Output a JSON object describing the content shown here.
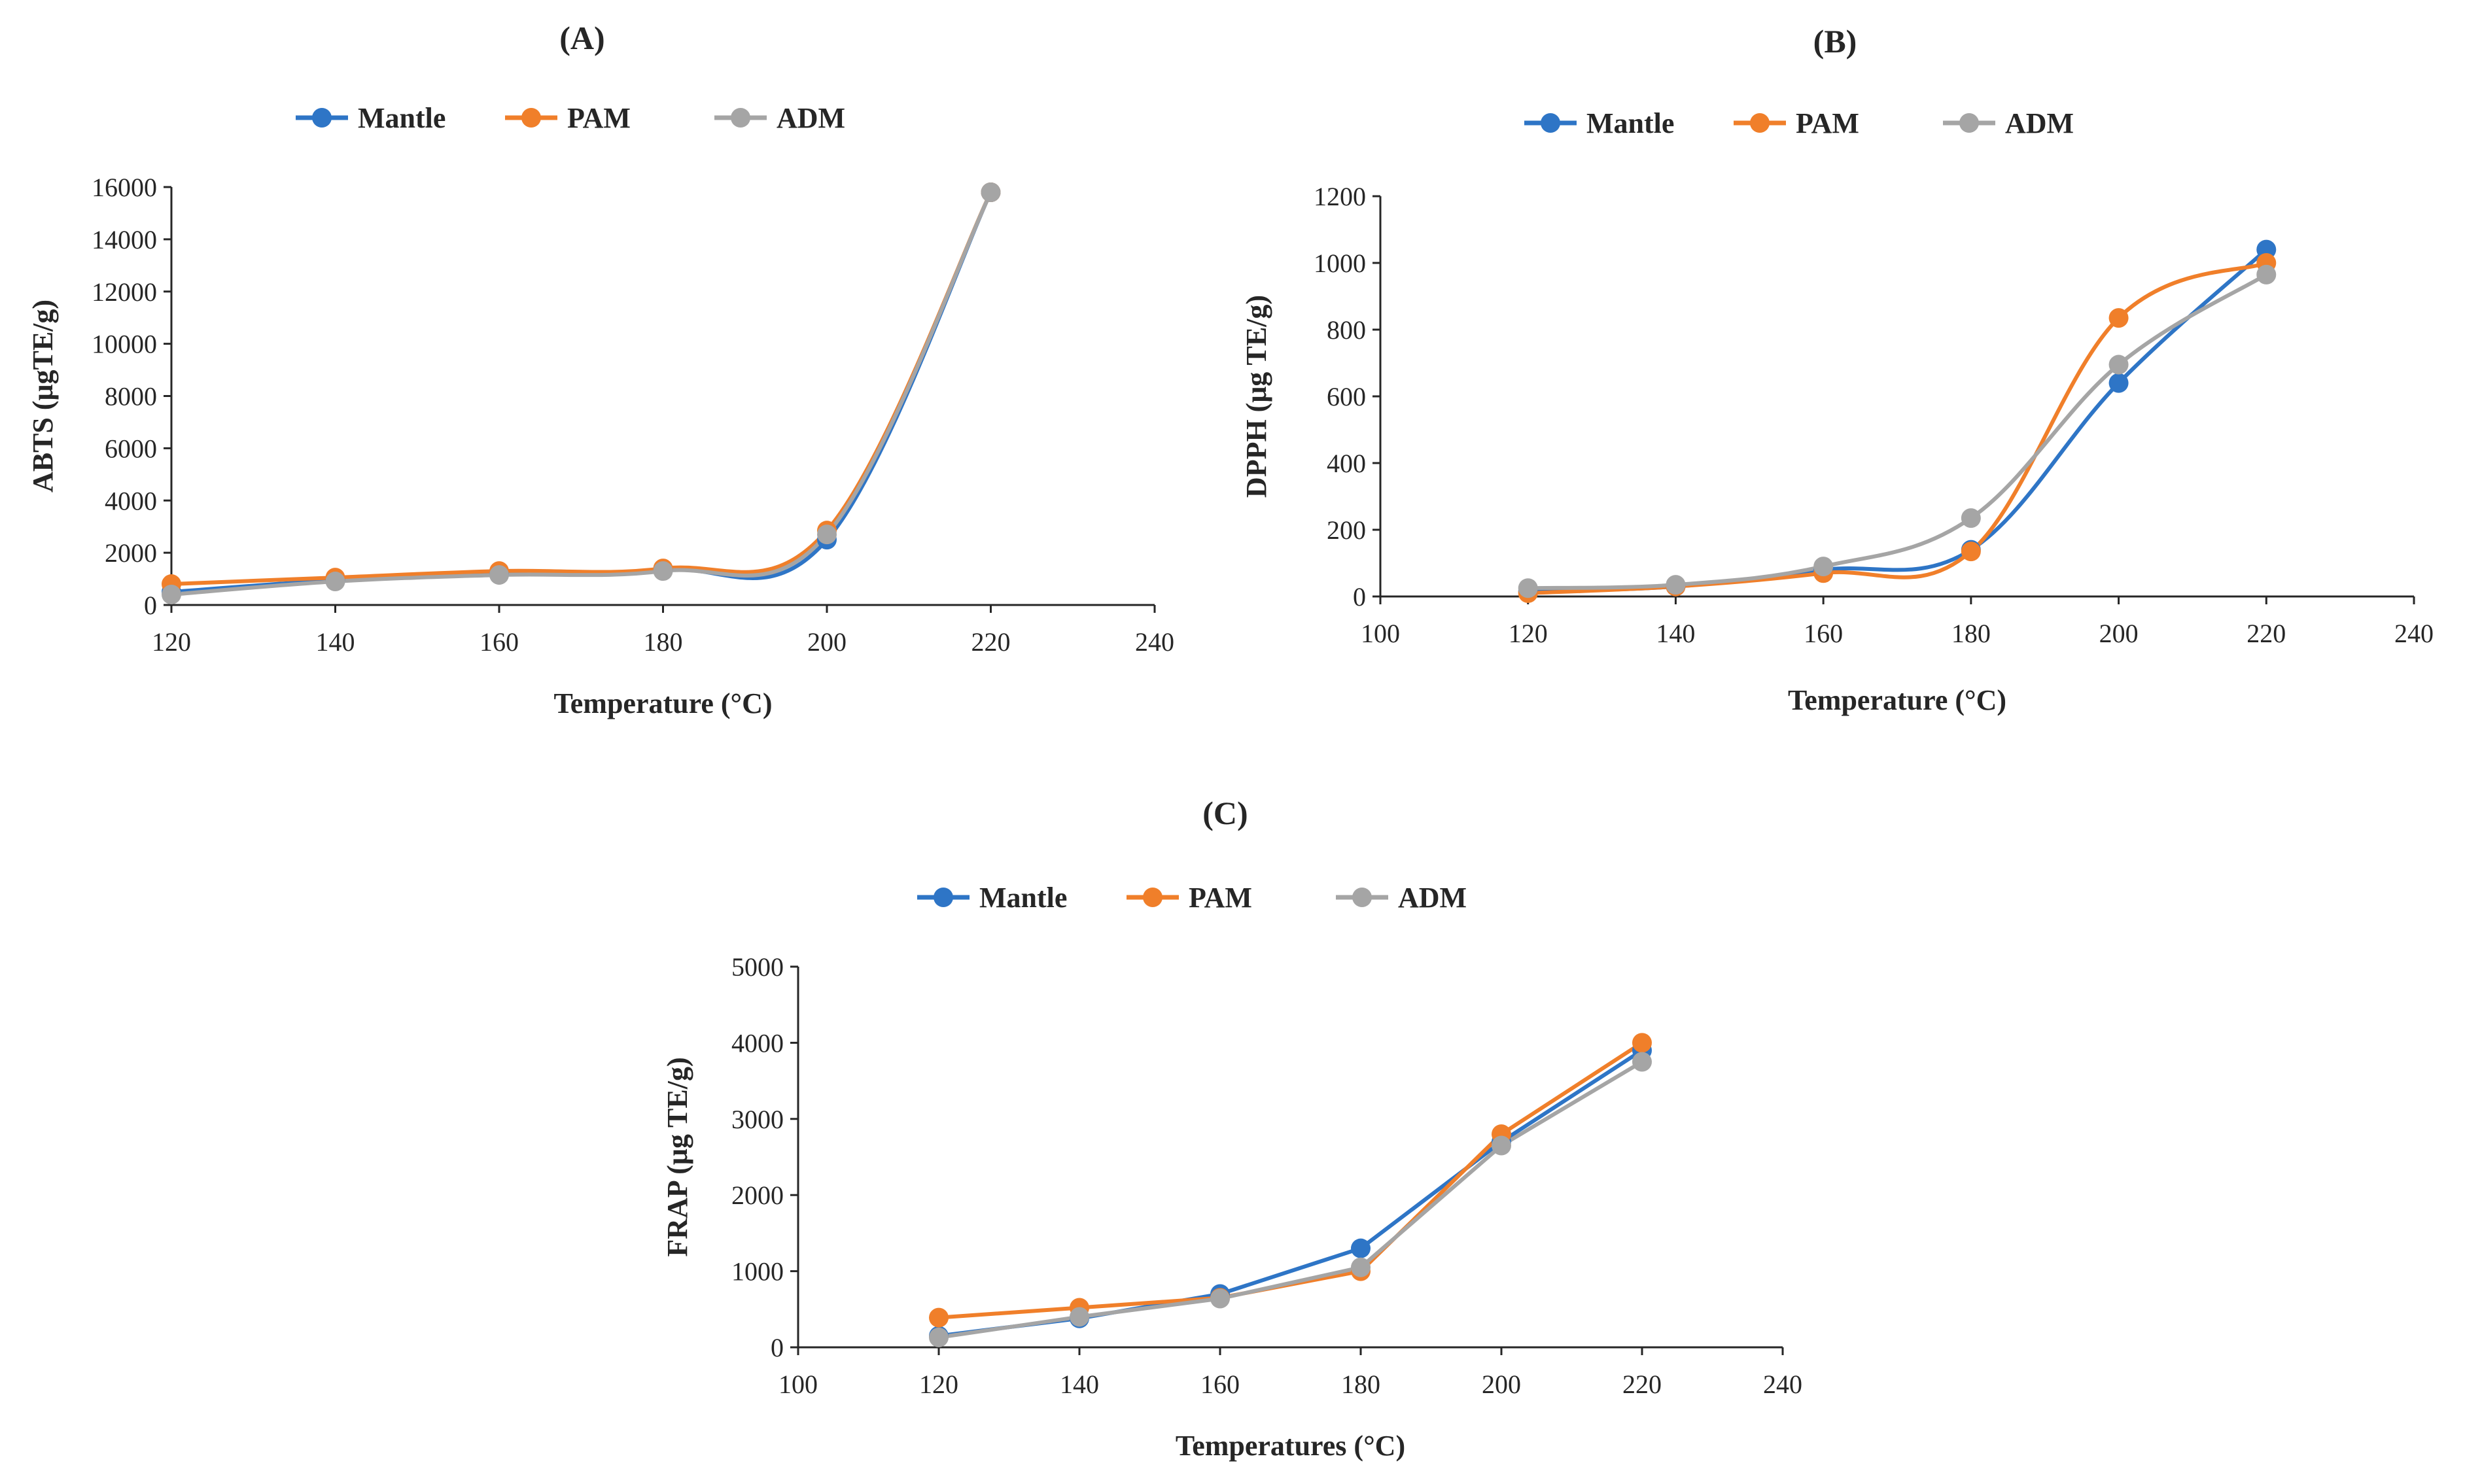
{
  "chart_data": [
    {
      "id": "A",
      "type": "line",
      "panel_label": "(A)",
      "xlabel": "Temperature (°C)",
      "ylabel": "ABTS (μgTE/g)",
      "xlim": [
        120,
        240
      ],
      "ylim": [
        0,
        16000
      ],
      "xticks": [
        120,
        140,
        160,
        180,
        200,
        220,
        240
      ],
      "yticks": [
        0,
        2000,
        4000,
        6000,
        8000,
        10000,
        12000,
        14000,
        16000
      ],
      "legend_position": "top",
      "smooth": true,
      "x": [
        120,
        140,
        160,
        180,
        200,
        220
      ],
      "series": [
        {
          "name": "Mantle",
          "color": "#2E75C6",
          "values": [
            500,
            950,
            1200,
            1350,
            2500,
            15800
          ]
        },
        {
          "name": "PAM",
          "color": "#F07F2A",
          "values": [
            800,
            1050,
            1300,
            1400,
            2850,
            15800
          ]
        },
        {
          "name": "ADM",
          "color": "#A5A5A5",
          "values": [
            400,
            900,
            1150,
            1300,
            2700,
            15800
          ]
        }
      ]
    },
    {
      "id": "B",
      "type": "line",
      "panel_label": "(B)",
      "xlabel": "Temperature (°C)",
      "ylabel": "DPPH (μg TE/g)",
      "xlim": [
        100,
        240
      ],
      "ylim": [
        0,
        1200
      ],
      "xticks": [
        100,
        120,
        140,
        160,
        180,
        200,
        220,
        240
      ],
      "yticks": [
        0,
        200,
        400,
        600,
        800,
        1000,
        1200
      ],
      "legend_position": "top",
      "smooth": true,
      "x": [
        120,
        140,
        160,
        180,
        200,
        220
      ],
      "series": [
        {
          "name": "Mantle",
          "color": "#2E75C6",
          "values": [
            15,
            30,
            80,
            140,
            640,
            1040
          ]
        },
        {
          "name": "PAM",
          "color": "#F07F2A",
          "values": [
            10,
            30,
            70,
            135,
            835,
            1000
          ]
        },
        {
          "name": "ADM",
          "color": "#A5A5A5",
          "values": [
            25,
            35,
            90,
            235,
            695,
            965
          ]
        }
      ]
    },
    {
      "id": "C",
      "type": "line",
      "panel_label": "(C)",
      "xlabel": "Temperatures (°C)",
      "ylabel": "FRAP (μg TE/g)",
      "xlim": [
        100,
        240
      ],
      "ylim": [
        0,
        5000
      ],
      "xticks": [
        100,
        120,
        140,
        160,
        180,
        200,
        220,
        240
      ],
      "yticks": [
        0,
        1000,
        2000,
        3000,
        4000,
        5000
      ],
      "legend_position": "top",
      "smooth": false,
      "x": [
        120,
        140,
        160,
        180,
        200,
        220
      ],
      "series": [
        {
          "name": "Mantle",
          "color": "#2E75C6",
          "values": [
            150,
            380,
            700,
            1300,
            2700,
            3900
          ]
        },
        {
          "name": "PAM",
          "color": "#F07F2A",
          "values": [
            390,
            520,
            650,
            1000,
            2800,
            4000
          ]
        },
        {
          "name": "ADM",
          "color": "#A5A5A5",
          "values": [
            130,
            400,
            640,
            1050,
            2650,
            3750
          ]
        }
      ]
    }
  ]
}
